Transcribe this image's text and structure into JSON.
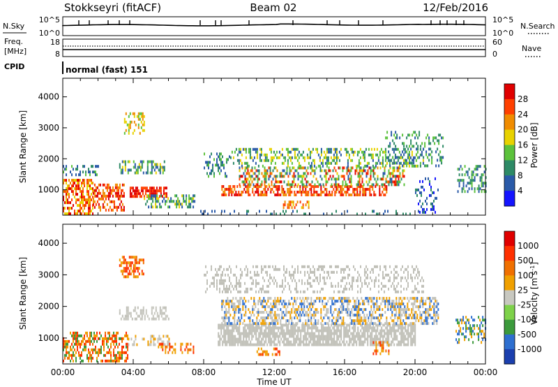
{
  "header": {
    "station": "Stokkseyri (fitACF)",
    "beam": "Beam 02",
    "date": "12/Feb/2016"
  },
  "strip_noise": {
    "left_label": "N.Sky",
    "right_label": "N.Search",
    "left_ticks": [
      "10^5",
      "10^0"
    ],
    "right_ticks": [
      "10^5",
      "10^0"
    ]
  },
  "strip_freq": {
    "left_label_line1": "Freq.",
    "left_label_line2": "[MHz]",
    "left_ticks": [
      "18",
      "8"
    ],
    "right_ticks": [
      "60",
      "0"
    ],
    "right_label": "Nave"
  },
  "strip_cpid": {
    "label": "CPID",
    "text": "normal (fast) 151"
  },
  "colors": {
    "power": [
      "#1414ff",
      "#2a5aa8",
      "#2e8a66",
      "#5cc23c",
      "#e8d200",
      "#f08c00",
      "#ff4000",
      "#e00000"
    ],
    "velocity": [
      "#1b3fae",
      "#2e6fd0",
      "#3c9a3c",
      "#7ed24a",
      "#c8c8c0",
      "#f0a000",
      "#f07000",
      "#ff3000",
      "#e00000"
    ],
    "ground_scatter": "#c0c0b8"
  },
  "chart_data": [
    {
      "type": "heatmap",
      "title": "Power",
      "xlabel": "",
      "ylabel": "Slant Range [km]",
      "x_ticks": [
        "00:00",
        "04:00",
        "08:00",
        "12:00",
        "16:00",
        "20:00",
        "00:00"
      ],
      "x_hours": [
        0,
        4,
        8,
        12,
        16,
        20,
        24
      ],
      "y_ticks": [
        "1000",
        "2000",
        "3000",
        "4000"
      ],
      "y_values": [
        1000,
        2000,
        3000,
        4000
      ],
      "ylim": [
        180,
        4600
      ],
      "xlim": [
        0,
        24
      ],
      "colorbar_label": "Power [dB]",
      "colorbar_ticks": [
        "4",
        "8",
        "12",
        "16",
        "20",
        "24",
        "28"
      ],
      "colorbar_range": [
        0,
        30
      ]
    },
    {
      "type": "heatmap",
      "title": "Velocity",
      "xlabel": "Time UT",
      "ylabel": "Slant Range [km]",
      "x_ticks": [
        "00:00",
        "04:00",
        "08:00",
        "12:00",
        "16:00",
        "20:00",
        "00:00"
      ],
      "x_hours": [
        0,
        4,
        8,
        12,
        16,
        20,
        24
      ],
      "y_ticks": [
        "1000",
        "2000",
        "3000",
        "4000"
      ],
      "y_values": [
        1000,
        2000,
        3000,
        4000
      ],
      "ylim": [
        180,
        4600
      ],
      "xlim": [
        0,
        24
      ],
      "colorbar_label": "Velocity [m s",
      "colorbar_label_sup": "-1",
      "colorbar_label_close": "]",
      "colorbar_ticks": [
        "1000",
        "500",
        "100",
        "25",
        "-25",
        "-100",
        "-500",
        "-1000"
      ]
    }
  ]
}
